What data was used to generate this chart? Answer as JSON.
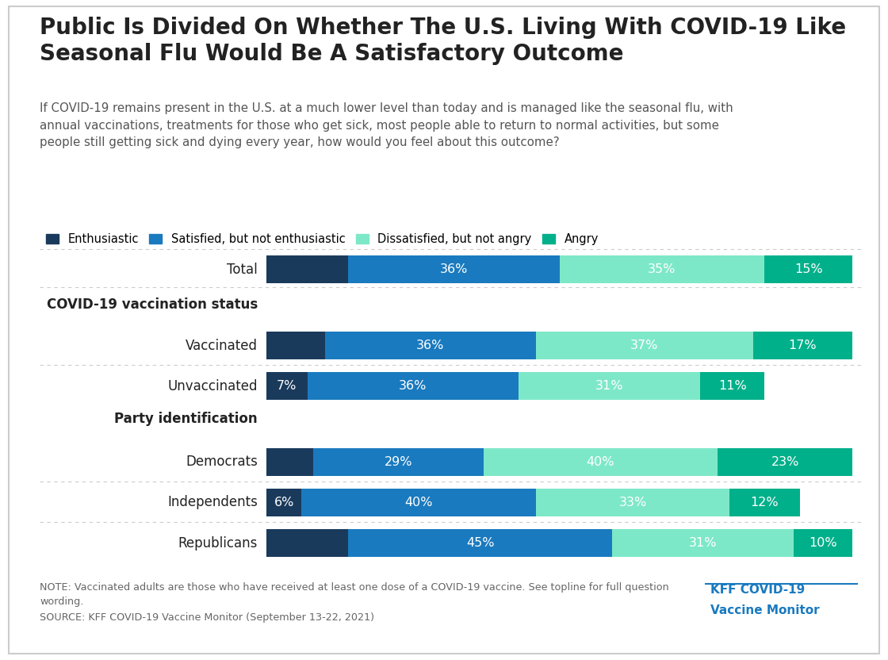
{
  "title": "Public Is Divided On Whether The U.S. Living With COVID-19 Like\nSeasonal Flu Would Be A Satisfactory Outcome",
  "subtitle": "If COVID-19 remains present in the U.S. at a much lower level than today and is managed like the seasonal flu, with\nannual vaccinations, treatments for those who get sick, most people able to return to normal activities, but some\npeople still getting sick and dying every year, how would you feel about this outcome?",
  "note_line1": "NOTE: Vaccinated adults are those who have received at least one dose of a COVID-19 vaccine. See topline for full question\nwording.",
  "note_line2": "SOURCE: KFF COVID-19 Vaccine Monitor (September 13-22, 2021)",
  "kff_label": "KFF COVID-19\nVaccine Monitor",
  "categories": [
    "Total",
    "Vaccinated",
    "Unvaccinated",
    "Democrats",
    "Independents",
    "Republicans"
  ],
  "data": [
    [
      14,
      36,
      35,
      15
    ],
    [
      10,
      36,
      37,
      17
    ],
    [
      7,
      36,
      31,
      11
    ],
    [
      8,
      29,
      40,
      23
    ],
    [
      6,
      40,
      33,
      12
    ],
    [
      14,
      45,
      31,
      10
    ]
  ],
  "display_values": [
    [
      null,
      "36%",
      "35%",
      "15%"
    ],
    [
      null,
      "36%",
      "37%",
      "17%"
    ],
    [
      "7%",
      "36%",
      "31%",
      "11%"
    ],
    [
      null,
      "29%",
      "40%",
      "23%"
    ],
    [
      "6%",
      "40%",
      "33%",
      "12%"
    ],
    [
      null,
      "45%",
      "31%",
      "10%"
    ]
  ],
  "colors": [
    "#1a3a5c",
    "#1a7abf",
    "#7de8c8",
    "#00b08a"
  ],
  "legend_labels": [
    "Enthusiastic",
    "Satisfied, but not enthusiastic",
    "Dissatisfied, but not angry",
    "Angry"
  ],
  "background_color": "#ffffff",
  "bar_height": 0.55,
  "label_fontsize": 11.5,
  "kff_color": "#1a7abf",
  "text_color": "#222222",
  "sub_color": "#555555",
  "note_color": "#666666",
  "section_headers": [
    "COVID-19 vaccination status",
    "Party identification"
  ],
  "section_before_index": [
    1,
    3
  ]
}
